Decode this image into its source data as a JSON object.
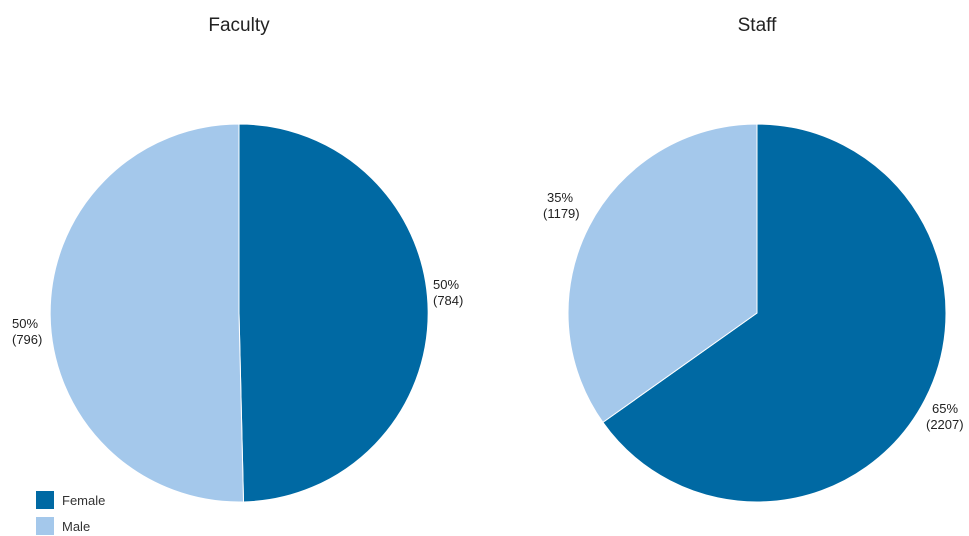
{
  "colors": {
    "Female": "#0069a3",
    "Male": "#a4c8eb"
  },
  "chart_data": [
    {
      "type": "pie",
      "title": "Faculty",
      "slices": [
        {
          "label": "Female",
          "value": 784,
          "percent_label": "50%",
          "count_label": "(784)"
        },
        {
          "label": "Male",
          "value": 796,
          "percent_label": "50%",
          "count_label": "(796)"
        }
      ]
    },
    {
      "type": "pie",
      "title": "Staff",
      "slices": [
        {
          "label": "Female",
          "value": 2207,
          "percent_label": "65%",
          "count_label": "(2207)"
        },
        {
          "label": "Male",
          "value": 1179,
          "percent_label": "35%",
          "count_label": "(1179)"
        }
      ]
    }
  ],
  "legend": {
    "items": [
      "Female",
      "Male"
    ],
    "position": "bottom-left"
  }
}
